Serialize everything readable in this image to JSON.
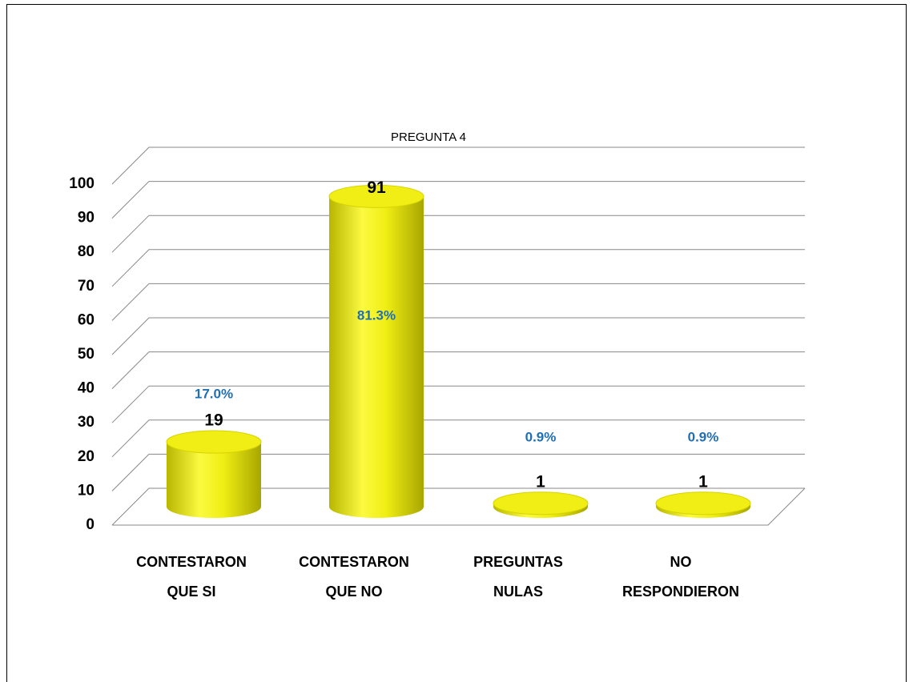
{
  "chart_data": {
    "type": "bar",
    "title": "PREGUNTA 4",
    "categories": [
      "CONTESTARON QUE SI",
      "CONTESTARON QUE NO",
      "PREGUNTAS NULAS",
      "NO RESPONDIERON"
    ],
    "values": [
      19,
      91,
      1,
      1
    ],
    "percent_labels": [
      "17.0%",
      "81.3%",
      "0.9%",
      "0.9%"
    ],
    "color": "#f0ee14",
    "ylim": [
      0,
      100
    ],
    "yticks": [
      0,
      10,
      20,
      30,
      40,
      50,
      60,
      70,
      80,
      90,
      100
    ],
    "grid": true
  }
}
